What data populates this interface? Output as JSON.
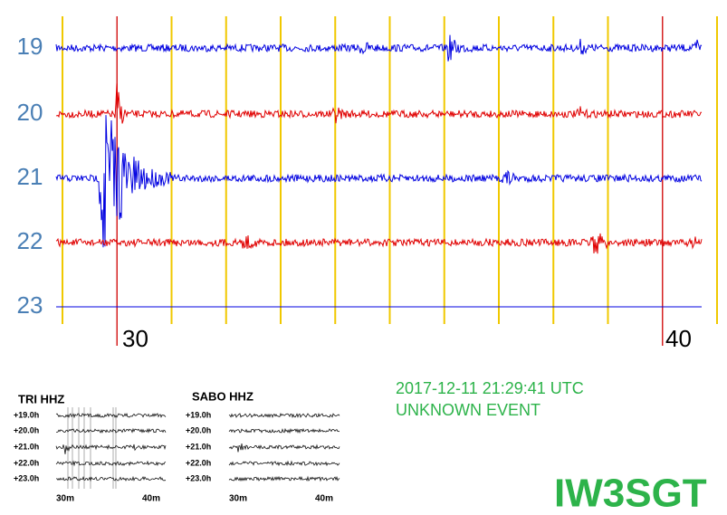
{
  "main": {
    "hours": [
      "19",
      "20",
      "21",
      "22",
      "23"
    ],
    "minute_labels": [
      "30",
      "40"
    ]
  },
  "insets": [
    {
      "title": "TRI HHZ",
      "hours": [
        "+19.0h",
        "+20.0h",
        "+21.0h",
        "+22.0h",
        "+23.0h"
      ],
      "minute_labels": [
        "30m",
        "40m"
      ]
    },
    {
      "title": "SABO HHZ",
      "hours": [
        "+19.0h",
        "+20.0h",
        "+21.0h",
        "+22.0h",
        "+23.0h"
      ],
      "minute_labels": [
        "30m",
        "40m"
      ]
    }
  ],
  "timestamp": "2017-12-11 21:29:41 UTC",
  "event": "UNKNOWN EVENT",
  "station": "IW3SGT"
}
